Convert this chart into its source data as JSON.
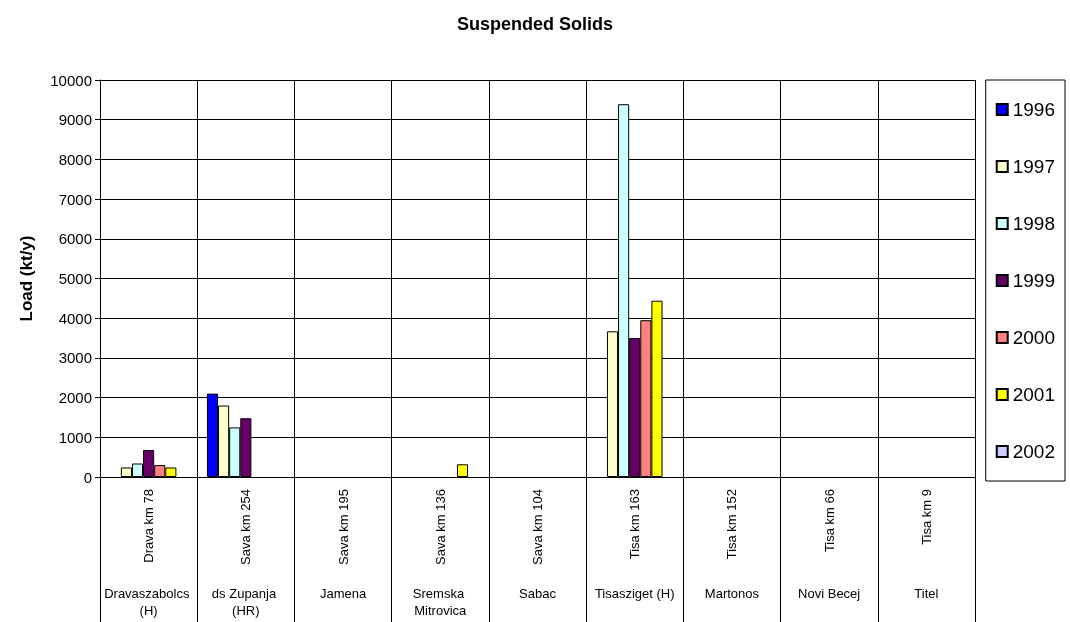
{
  "chart_data": {
    "type": "bar",
    "title": "Suspended Solids",
    "ylabel": "Load (kt/y)",
    "categories": [
      "Drava km 78",
      "Sava km 254",
      "Sava km 195",
      "Sava km 136",
      "Sava km 104",
      "Tisa km 163",
      "Tisa km 152",
      "Tisa km 66",
      "Tisa km 9"
    ],
    "annotations": [
      "Dravaszabolcs (H)",
      "ds Zupanja (HR)",
      "Jamena",
      "Sremska Mitrovica",
      "Sabac",
      "Tisasziget (H)",
      "Martonos",
      "Novi Becej",
      "Titel"
    ],
    "series": [
      {
        "name": "1996",
        "color": "#0000ff",
        "values": [
          null,
          2100,
          null,
          null,
          null,
          null,
          null,
          null,
          null
        ]
      },
      {
        "name": "1997",
        "color": "#ffffcc",
        "values": [
          240,
          1800,
          null,
          null,
          null,
          3670,
          null,
          null,
          null
        ]
      },
      {
        "name": "1998",
        "color": "#ccffff",
        "values": [
          340,
          1250,
          null,
          null,
          null,
          9390,
          null,
          null,
          null
        ]
      },
      {
        "name": "1999",
        "color": "#660066",
        "values": [
          680,
          1480,
          null,
          null,
          null,
          3500,
          null,
          null,
          null
        ]
      },
      {
        "name": "2000",
        "color": "#ff8080",
        "values": [
          300,
          null,
          null,
          null,
          null,
          3950,
          null,
          null,
          null
        ]
      },
      {
        "name": "2001",
        "color": "#ffff00",
        "values": [
          240,
          null,
          null,
          320,
          null,
          4440,
          null,
          null,
          null
        ]
      },
      {
        "name": "2002",
        "color": "#ccccff",
        "values": [
          null,
          null,
          null,
          null,
          null,
          null,
          null,
          null,
          null
        ]
      }
    ],
    "ylim": [
      0,
      10000
    ],
    "yticks": [
      0,
      1000,
      2000,
      3000,
      4000,
      5000,
      6000,
      7000,
      8000,
      9000,
      10000
    ],
    "grid": true,
    "legend": "right"
  }
}
